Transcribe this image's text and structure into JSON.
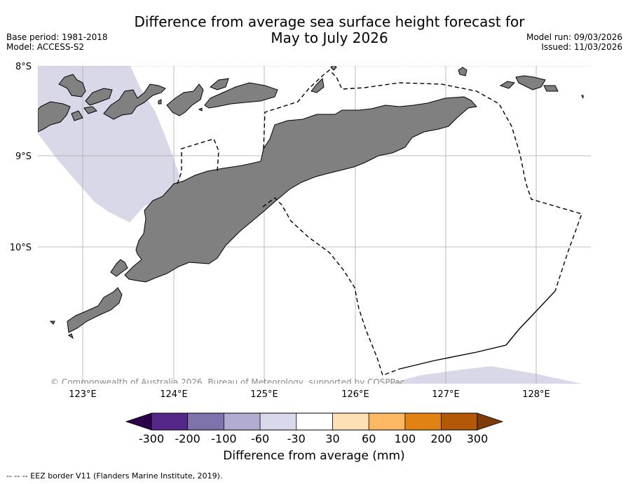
{
  "title": {
    "line1": "Difference from average sea surface height forecast for",
    "line2": "May to July 2026"
  },
  "meta_left": {
    "base_period": "Base period: 1981-2018",
    "model": "Model: ACCESS-S2"
  },
  "meta_right": {
    "model_run": "Model run: 09/03/2026",
    "issued": "Issued: 11/03/2026"
  },
  "map": {
    "lat_labels": [
      "8°S",
      "9°S",
      "10°S"
    ],
    "lon_labels": [
      "123°E",
      "124°E",
      "125°E",
      "126°E",
      "127°E",
      "128°E"
    ],
    "copyright": "© Commonwealth of Australia 2026, Bureau of Meteorology, supported by COSPPac",
    "colors": {
      "land": "#808080",
      "anomaly_fill": "#d8d8e8",
      "grid": "#aaaaaa"
    }
  },
  "colorbar": {
    "ticks": [
      "-300",
      "-200",
      "-100",
      "-60",
      "-30",
      "30",
      "60",
      "100",
      "200",
      "300"
    ],
    "colors": [
      "#2d004b",
      "#542788",
      "#8073ac",
      "#b2abd2",
      "#d8daeb",
      "#ffffff",
      "#fee0b6",
      "#fdb863",
      "#e08214",
      "#b35806",
      "#7f3b08"
    ],
    "label": "Difference from average (mm)"
  },
  "footnote": "--  --  -- EEZ border V11 (Flanders Marine Institute, 2019)."
}
